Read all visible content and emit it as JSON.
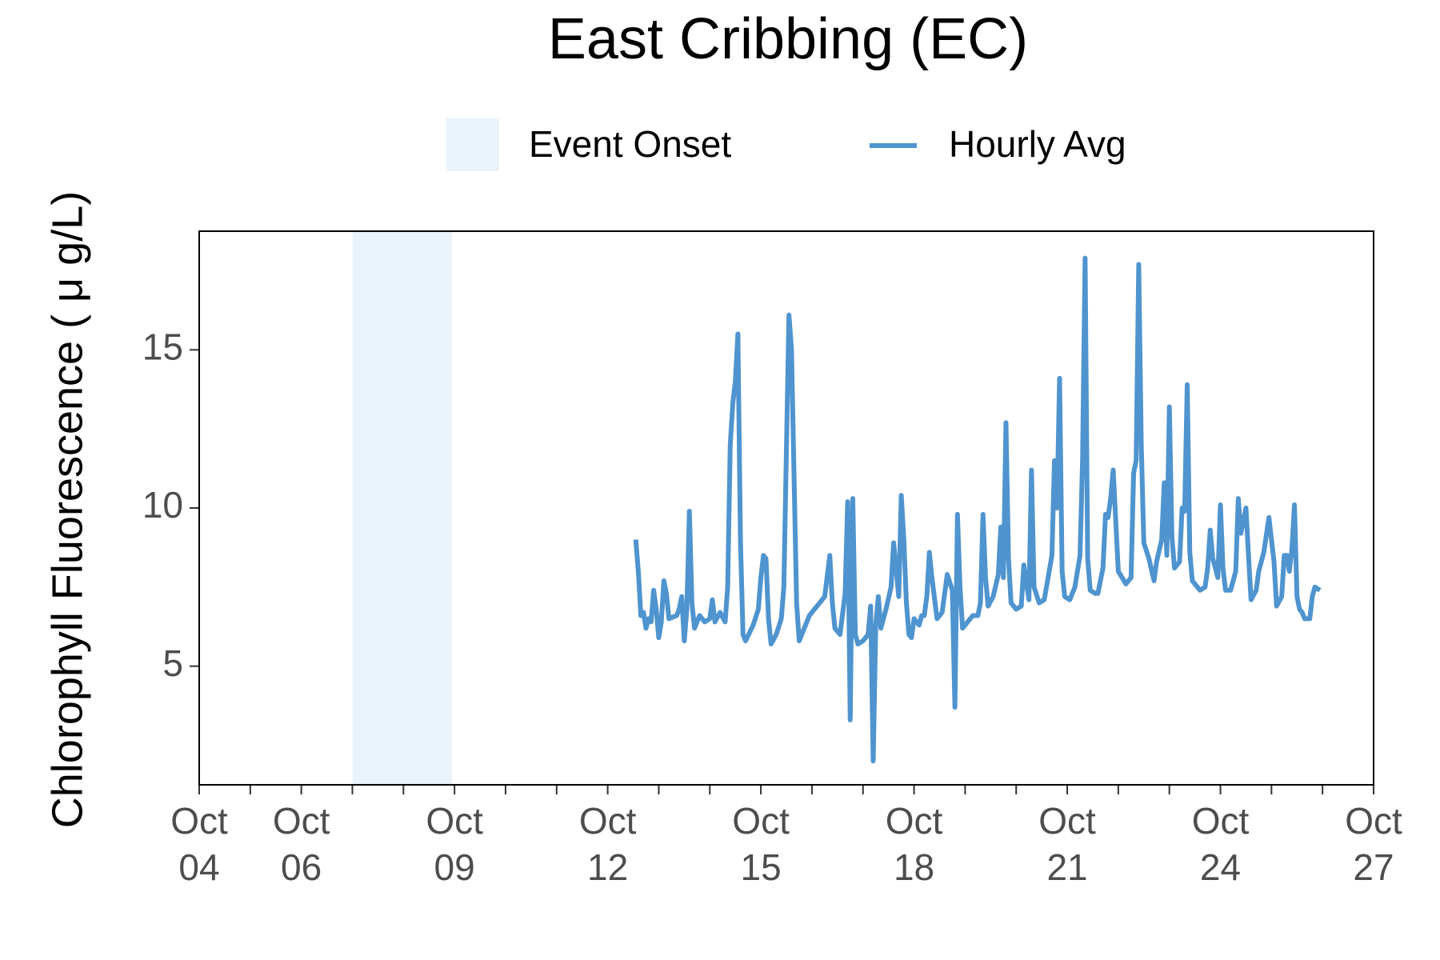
{
  "chart_data": {
    "type": "line",
    "title": "East Cribbing (EC)",
    "y_label": "Chlorophyll Fluorescence ( μ g/L)",
    "shaded_regions": [
      {
        "name": "Event Onset",
        "start": 7,
        "end": 8.95,
        "color": "#ebf3fa"
      }
    ],
    "x": [
      12.55,
      12.6,
      12.65,
      12.7,
      12.75,
      12.8,
      12.85,
      12.9,
      12.95,
      13.0,
      13.05,
      13.1,
      13.15,
      13.2,
      13.35,
      13.4,
      13.45,
      13.5,
      13.55,
      13.6,
      13.65,
      13.7,
      13.8,
      13.9,
      14.0,
      14.05,
      14.1,
      14.2,
      14.3,
      14.35,
      14.4,
      14.45,
      14.5,
      14.55,
      14.6,
      14.65,
      14.7,
      14.85,
      14.95,
      15.0,
      15.05,
      15.1,
      15.15,
      15.2,
      15.3,
      15.4,
      15.45,
      15.55,
      15.6,
      15.65,
      15.7,
      15.75,
      15.85,
      15.95,
      16.1,
      16.25,
      16.35,
      16.4,
      16.45,
      16.55,
      16.65,
      16.7,
      16.75,
      16.8,
      16.85,
      16.9,
      17.0,
      17.1,
      17.15,
      17.2,
      17.25,
      17.3,
      17.35,
      17.45,
      17.55,
      17.6,
      17.7,
      17.75,
      17.8,
      17.85,
      17.9,
      17.95,
      18.0,
      18.1,
      18.15,
      18.2,
      18.25,
      18.3,
      18.35,
      18.45,
      18.55,
      18.65,
      18.75,
      18.8,
      18.85,
      18.9,
      18.95,
      19.05,
      19.15,
      19.25,
      19.3,
      19.35,
      19.4,
      19.45,
      19.55,
      19.65,
      19.7,
      19.75,
      19.8,
      19.85,
      19.9,
      20.0,
      20.1,
      20.15,
      20.25,
      20.3,
      20.35,
      20.45,
      20.55,
      20.7,
      20.75,
      20.8,
      20.85,
      20.9,
      20.95,
      21.05,
      21.15,
      21.25,
      21.3,
      21.35,
      21.4,
      21.45,
      21.55,
      21.6,
      21.7,
      21.75,
      21.8,
      21.85,
      21.9,
      22.0,
      22.15,
      22.25,
      22.3,
      22.35,
      22.4,
      22.45,
      22.5,
      22.6,
      22.7,
      22.75,
      22.85,
      22.9,
      22.95,
      23.0,
      23.05,
      23.1,
      23.2,
      23.25,
      23.3,
      23.35,
      23.4,
      23.45,
      23.6,
      23.7,
      23.75,
      23.8,
      23.85,
      23.95,
      24.0,
      24.05,
      24.1,
      24.2,
      24.3,
      24.35,
      24.4,
      24.5,
      24.55,
      24.6,
      24.7,
      24.75,
      24.85,
      24.95,
      25.05,
      25.1,
      25.2,
      25.25,
      25.3,
      25.35,
      25.4,
      25.45,
      25.5,
      25.55,
      25.6,
      25.65,
      25.75,
      25.8,
      25.85,
      25.95
    ],
    "series": [
      {
        "name": "Hourly Avg",
        "color": "#4f94cf",
        "values": [
          9.0,
          8.0,
          6.6,
          6.7,
          6.2,
          6.5,
          6.4,
          7.4,
          6.8,
          5.9,
          6.4,
          7.7,
          7.3,
          6.5,
          6.6,
          6.8,
          7.2,
          5.8,
          6.8,
          9.9,
          7.0,
          6.2,
          6.6,
          6.4,
          6.5,
          7.1,
          6.4,
          6.7,
          6.4,
          7.5,
          12.0,
          13.3,
          14.0,
          15.5,
          9.0,
          6.0,
          5.8,
          6.3,
          6.8,
          7.8,
          8.5,
          8.4,
          6.5,
          5.7,
          6.0,
          6.5,
          7.5,
          16.1,
          15.0,
          11.0,
          7.0,
          5.8,
          6.2,
          6.6,
          6.9,
          7.2,
          8.5,
          7.0,
          6.2,
          6.0,
          7.3,
          10.2,
          3.3,
          10.3,
          6.0,
          5.7,
          5.8,
          6.0,
          6.9,
          2.0,
          6.3,
          7.2,
          6.2,
          6.8,
          7.5,
          8.9,
          7.2,
          10.4,
          9.0,
          7.0,
          6.0,
          5.9,
          6.5,
          6.3,
          6.6,
          6.6,
          7.2,
          8.6,
          7.8,
          6.5,
          6.7,
          7.9,
          7.4,
          3.7,
          9.8,
          7.5,
          6.2,
          6.4,
          6.6,
          6.6,
          7.0,
          9.8,
          7.8,
          6.9,
          7.2,
          7.9,
          9.4,
          7.8,
          12.7,
          8.4,
          7.0,
          6.8,
          6.9,
          8.2,
          7.1,
          11.2,
          7.5,
          7.0,
          7.1,
          8.5,
          11.5,
          10.0,
          14.1,
          8.0,
          7.2,
          7.1,
          7.5,
          8.5,
          11.5,
          17.9,
          8.4,
          7.4,
          7.3,
          7.3,
          8.1,
          9.8,
          9.7,
          10.3,
          11.2,
          8.0,
          7.6,
          7.8,
          11.1,
          11.5,
          17.7,
          12.0,
          8.9,
          8.4,
          7.7,
          8.3,
          9.0,
          10.8,
          8.5,
          13.2,
          9.1,
          8.1,
          8.3,
          10.0,
          9.9,
          13.9,
          8.6,
          7.7,
          7.4,
          7.5,
          8.1,
          9.3,
          8.4,
          7.8,
          10.1,
          8.1,
          7.4,
          7.4,
          8.0,
          10.3,
          9.2,
          10.0,
          8.5,
          7.1,
          7.4,
          8.0,
          8.6,
          9.7,
          8.3,
          6.9,
          7.2,
          8.5,
          8.5,
          8.0,
          8.7,
          10.1,
          7.2,
          6.8,
          6.7,
          6.5,
          6.5,
          7.2,
          7.5,
          7.4
        ]
      }
    ],
    "xlim": [
      4,
      27
    ],
    "xticks": [
      {
        "value": 4,
        "label": "Oct\n04"
      },
      {
        "value": 6,
        "label": "Oct\n06"
      },
      {
        "value": 9,
        "label": "Oct\n09"
      },
      {
        "value": 12,
        "label": "Oct\n12"
      },
      {
        "value": 15,
        "label": "Oct\n15"
      },
      {
        "value": 18,
        "label": "Oct\n18"
      },
      {
        "value": 21,
        "label": "Oct\n21"
      },
      {
        "value": 24,
        "label": "Oct\n24"
      },
      {
        "value": 27,
        "label": "Oct\n27"
      }
    ],
    "xminorticks": [
      5,
      7,
      8,
      10,
      11,
      13,
      14,
      16,
      17,
      19,
      20,
      22,
      23,
      25,
      26
    ],
    "ylim": [
      1.25,
      18.75
    ],
    "yticks": [
      5,
      10,
      15
    ],
    "grid": false
  }
}
